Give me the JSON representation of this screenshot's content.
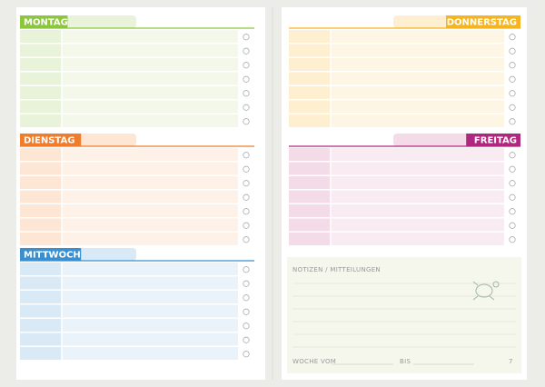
{
  "days": [
    {
      "label": "MONTAG"
    },
    {
      "label": "DIENSTAG"
    },
    {
      "label": "MITTWOCH"
    },
    {
      "label": "DONNERSTAG"
    },
    {
      "label": "FREITAG"
    }
  ],
  "notes": {
    "title": "NOTIZEN / MITTEILUNGEN",
    "week_from": "WOCHE VOM",
    "until": "BIS"
  },
  "page_number": "7"
}
